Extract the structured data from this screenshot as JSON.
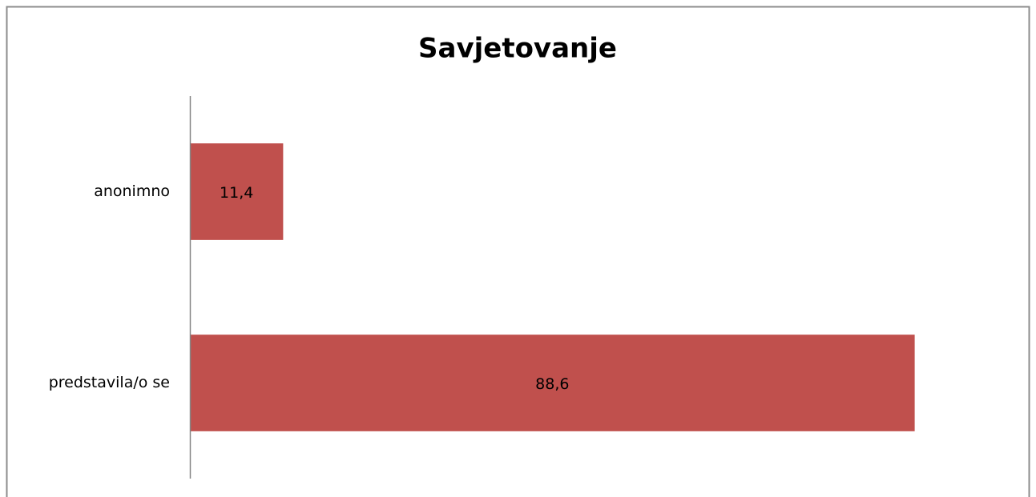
{
  "chart_data": {
    "type": "hbar",
    "title": "Savjetovanje",
    "categories": [
      "anonimno",
      "predstavila/o se"
    ],
    "values": [
      11.4,
      88.6
    ],
    "value_labels": [
      "11,4",
      "88,6"
    ],
    "color": "#c0504d",
    "xlim": [
      0,
      100
    ]
  }
}
